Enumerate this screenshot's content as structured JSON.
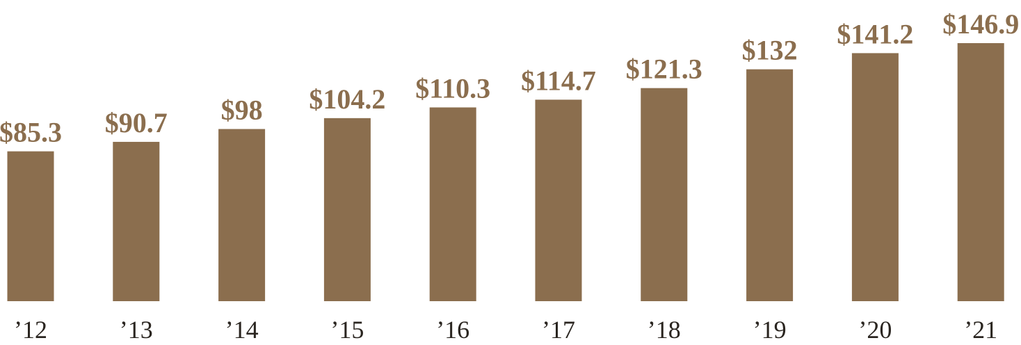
{
  "chart_data": {
    "type": "bar",
    "categories": [
      "’12",
      "’13",
      "’14",
      "’15",
      "’16",
      "’17",
      "’18",
      "’19",
      "’20",
      "’21"
    ],
    "values": [
      85.3,
      90.7,
      98,
      104.2,
      110.3,
      114.7,
      121.3,
      132,
      141.2,
      146.9
    ],
    "value_labels": [
      "$85.3",
      "$90.7",
      "$98",
      "$104.2",
      "$110.3",
      "$114.7",
      "$121.3",
      "$132",
      "$141.2",
      "$146.9"
    ],
    "color": "#8b6e4e"
  }
}
